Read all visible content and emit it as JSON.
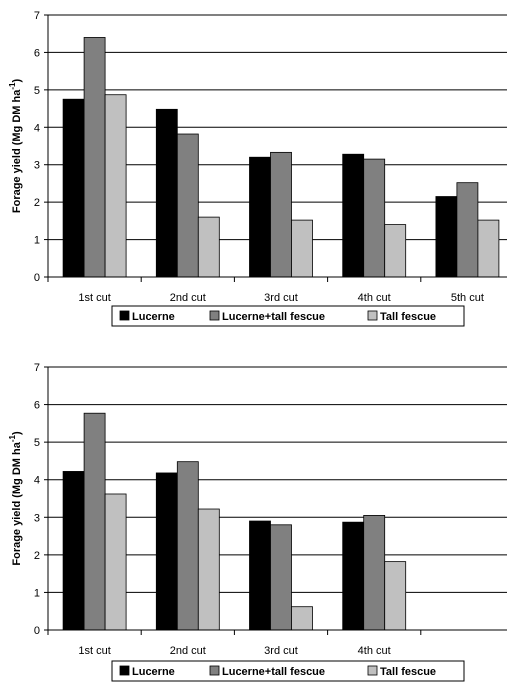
{
  "colors": {
    "lucerne": "#000000",
    "mix": "#808080",
    "fescue": "#c0c0c0",
    "grid": "#000000",
    "text": "#000000"
  },
  "chart_data": [
    {
      "type": "bar",
      "categories": [
        "1st cut",
        "2nd cut",
        "3rd cut",
        "4th cut",
        "5th cut"
      ],
      "series": [
        {
          "name": "Lucerne",
          "values": [
            4.75,
            4.48,
            3.2,
            3.28,
            2.15
          ]
        },
        {
          "name": "Lucerne+tall fescue",
          "values": [
            6.4,
            3.82,
            3.33,
            3.15,
            2.52
          ]
        },
        {
          "name": "Tall fescue",
          "values": [
            4.87,
            1.6,
            1.52,
            1.4,
            1.52
          ]
        }
      ],
      "ylabel_main": "Forage yield (Mg DM ha",
      "ylabel_sup": "-1",
      "ylabel_close": ")",
      "ylim": [
        0,
        7
      ],
      "yticks": [
        "0",
        "1",
        "2",
        "3",
        "4",
        "5",
        "6",
        "7"
      ],
      "grid": true,
      "legend": "bottom"
    },
    {
      "type": "bar",
      "categories": [
        "1st cut",
        "2nd cut",
        "3rd cut",
        "4th cut",
        ""
      ],
      "series": [
        {
          "name": "Lucerne",
          "values": [
            4.22,
            4.18,
            2.9,
            2.87,
            null
          ]
        },
        {
          "name": "Lucerne+tall fescue",
          "values": [
            5.77,
            4.48,
            2.8,
            3.05,
            null
          ]
        },
        {
          "name": "Tall fescue",
          "values": [
            3.62,
            3.22,
            0.62,
            1.82,
            null
          ]
        }
      ],
      "ylabel_main": "Forage yield (Mg DM ha",
      "ylabel_sup": "-1",
      "ylabel_close": ")",
      "ylim": [
        0,
        7
      ],
      "yticks": [
        "0",
        "1",
        "2",
        "3",
        "4",
        "5",
        "6",
        "7"
      ],
      "grid": true,
      "legend": "bottom"
    }
  ]
}
